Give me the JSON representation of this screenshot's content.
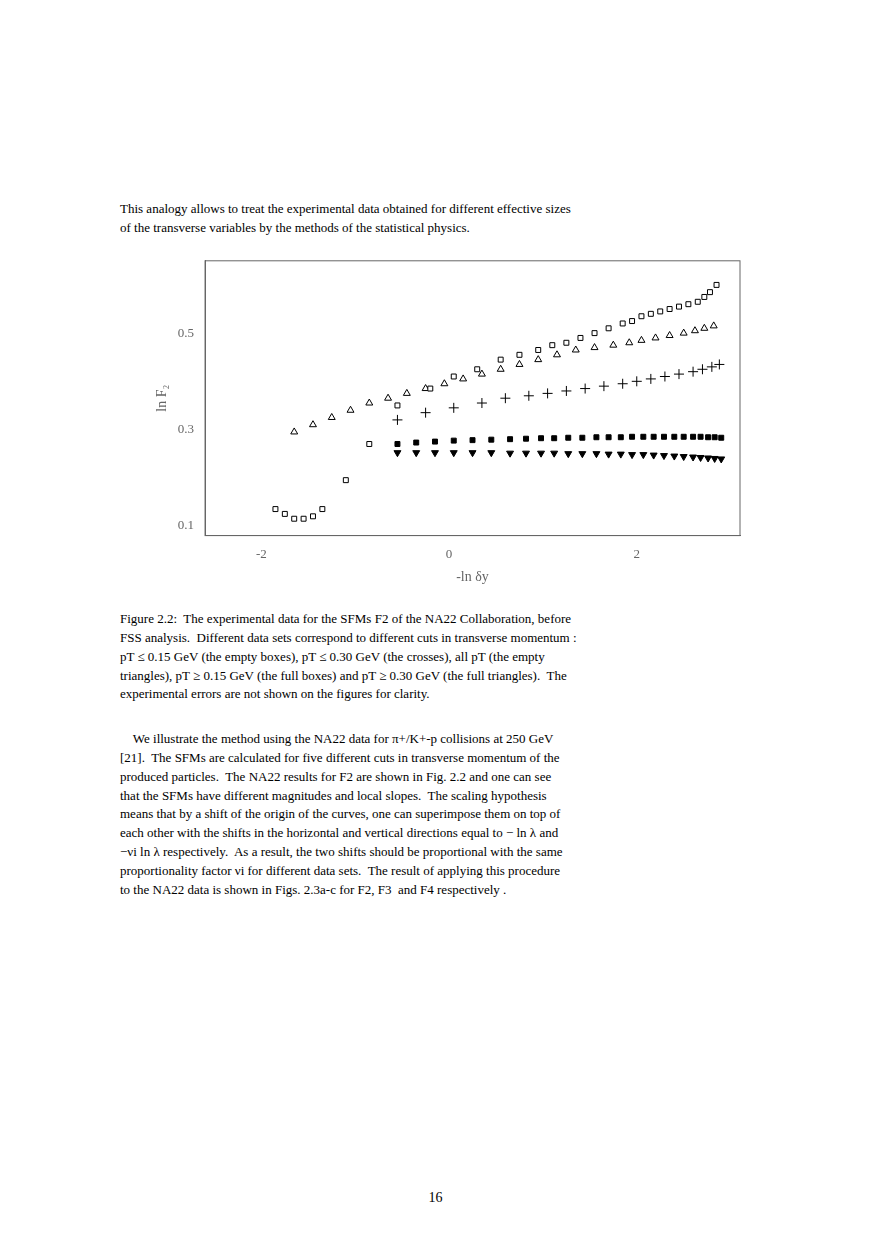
{
  "chart_data": {
    "type": "scatter",
    "xlabel": "-ln δy",
    "ylabel": "ln F₂",
    "xlim": [
      -2.6,
      3.1
    ],
    "ylim": [
      0.08,
      0.65
    ],
    "xticks": [
      -2,
      0,
      2
    ],
    "yticks": [
      0.1,
      0.3,
      0.5
    ],
    "grid": false,
    "annotations": [
      "This analogy allows to treat the experimental data obtained for different effective sizes\nof the transverse variables by the methods of the statistical physics.",
      "Figure 2.2:  The experimental data for the SFMs F2 of the NA22 Collaboration, before\nFSS analysis.  Different data sets correspond to different cuts in transverse momentum :\npT ≤ 0.15 GeV (the empty boxes), pT ≤ 0.30 GeV (the crosses), all pT (the empty\ntriangles), pT ≥ 0.15 GeV (the full boxes) and pT ≥ 0.30 GeV (the full triangles).  The\nexperimental errors are not shown on the figures for clarity.",
      "    We illustrate the method using the NA22 data for π+/K+-p collisions at 250 GeV\n[21].  The SFMs are calculated for five different cuts in transverse momentum of the\nproduced particles.  The NA22 results for F2 are shown in Fig. 2.2 and one can see\nthat the SFMs have different magnitudes and local slopes.  The scaling hypothesis\nmeans that by a shift of the origin of the curves, one can superimpose them on top of\neach other with the shifts in the horizontal and vertical directions equal to − ln λ and\n−νi ln λ respectively.  As a result, the two shifts should be proportional with the same\nproportionality factor νi for different data sets.  The result of applying this procedure\nto the NA22 data is shown in Figs. 2.3a-c for F2, F3  and F4 respectively .",
      "16"
    ],
    "series": [
      {
        "marker": "square_open",
        "color": "#000000",
        "x": [
          -1.85,
          -1.75,
          -1.65,
          -1.55,
          -1.45,
          -1.35,
          -1.1,
          -0.85,
          -0.55,
          -0.2,
          0.05,
          0.3,
          0.55,
          0.75,
          0.95,
          1.1,
          1.25,
          1.4,
          1.55,
          1.7,
          1.85,
          1.95,
          2.05,
          2.15,
          2.25,
          2.35,
          2.45,
          2.55,
          2.65,
          2.72,
          2.78,
          2.85
        ],
        "values": [
          0.135,
          0.125,
          0.115,
          0.115,
          0.12,
          0.135,
          0.195,
          0.27,
          0.35,
          0.385,
          0.41,
          0.425,
          0.445,
          0.455,
          0.465,
          0.475,
          0.48,
          0.49,
          0.5,
          0.51,
          0.52,
          0.525,
          0.535,
          0.54,
          0.545,
          0.55,
          0.555,
          0.56,
          0.565,
          0.575,
          0.585,
          0.6
        ]
      },
      {
        "marker": "plus",
        "color": "#000000",
        "x": [
          -0.55,
          -0.25,
          0.05,
          0.35,
          0.6,
          0.85,
          1.05,
          1.25,
          1.45,
          1.65,
          1.85,
          2.0,
          2.15,
          2.3,
          2.45,
          2.6,
          2.7,
          2.8,
          2.88
        ],
        "values": [
          0.32,
          0.335,
          0.345,
          0.355,
          0.365,
          0.37,
          0.375,
          0.38,
          0.385,
          0.39,
          0.395,
          0.4,
          0.405,
          0.41,
          0.415,
          0.42,
          0.425,
          0.43,
          0.435
        ]
      },
      {
        "marker": "triangle_open",
        "color": "#000000",
        "x": [
          -1.65,
          -1.45,
          -1.25,
          -1.05,
          -0.85,
          -0.65,
          -0.45,
          -0.25,
          -0.05,
          0.15,
          0.35,
          0.55,
          0.75,
          0.95,
          1.15,
          1.35,
          1.55,
          1.75,
          1.92,
          2.05,
          2.2,
          2.35,
          2.5,
          2.62,
          2.72,
          2.82
        ],
        "values": [
          0.295,
          0.31,
          0.325,
          0.34,
          0.355,
          0.365,
          0.375,
          0.385,
          0.395,
          0.405,
          0.415,
          0.425,
          0.435,
          0.445,
          0.455,
          0.465,
          0.47,
          0.475,
          0.48,
          0.485,
          0.49,
          0.495,
          0.5,
          0.505,
          0.51,
          0.515
        ]
      },
      {
        "marker": "square",
        "color": "#000000",
        "x": [
          -0.55,
          -0.35,
          -0.15,
          0.05,
          0.25,
          0.45,
          0.65,
          0.82,
          0.98,
          1.12,
          1.27,
          1.42,
          1.57,
          1.7,
          1.83,
          1.95,
          2.07,
          2.18,
          2.29,
          2.4,
          2.5,
          2.6,
          2.68,
          2.76,
          2.83,
          2.9
        ],
        "values": [
          0.27,
          0.273,
          0.275,
          0.277,
          0.278,
          0.279,
          0.28,
          0.281,
          0.282,
          0.282,
          0.283,
          0.283,
          0.284,
          0.284,
          0.284,
          0.285,
          0.285,
          0.285,
          0.285,
          0.285,
          0.285,
          0.285,
          0.285,
          0.284,
          0.284,
          0.283
        ]
      },
      {
        "marker": "triangle_down",
        "color": "#000000",
        "x": [
          -0.55,
          -0.35,
          -0.15,
          0.05,
          0.25,
          0.45,
          0.65,
          0.82,
          0.98,
          1.12,
          1.27,
          1.42,
          1.57,
          1.7,
          1.83,
          1.95,
          2.07,
          2.18,
          2.29,
          2.4,
          2.5,
          2.6,
          2.68,
          2.76,
          2.83,
          2.9
        ],
        "values": [
          0.252,
          0.252,
          0.252,
          0.252,
          0.252,
          0.252,
          0.251,
          0.251,
          0.251,
          0.251,
          0.25,
          0.25,
          0.25,
          0.249,
          0.249,
          0.248,
          0.248,
          0.247,
          0.246,
          0.245,
          0.244,
          0.243,
          0.242,
          0.241,
          0.24,
          0.239
        ]
      }
    ]
  }
}
